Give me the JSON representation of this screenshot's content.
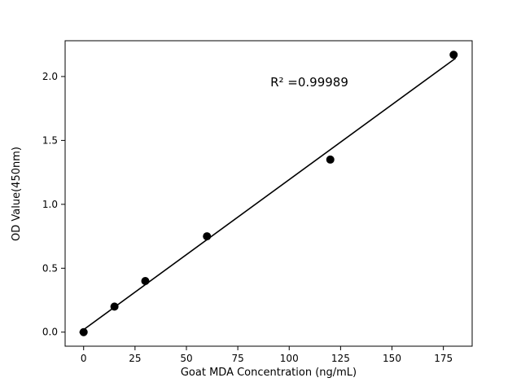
{
  "figure": {
    "background": "#ffffff"
  },
  "chart_data": {
    "type": "scatter",
    "title": "",
    "xlabel": "Goat MDA Concentration (ng/mL)",
    "ylabel": "OD Value(450nm)",
    "annotation": "R² =0.99989",
    "points": {
      "x": [
        0,
        15,
        30,
        60,
        120,
        180
      ],
      "y": [
        0.0,
        0.2,
        0.4,
        0.75,
        1.35,
        2.17
      ]
    },
    "fit_line": {
      "x": [
        -2,
        181
      ],
      "y": [
        -0.004,
        2.144
      ]
    },
    "xlim": [
      -9,
      189
    ],
    "ylim": [
      -0.11,
      2.28
    ],
    "xticks": [
      0,
      25,
      50,
      75,
      100,
      125,
      150,
      175
    ],
    "yticks": [
      0.0,
      0.5,
      1.0,
      1.5,
      2.0
    ],
    "marker_color": "#000000",
    "line_color": "#000000",
    "frame_color": "#000000",
    "grid": false,
    "legend_position": "none"
  }
}
